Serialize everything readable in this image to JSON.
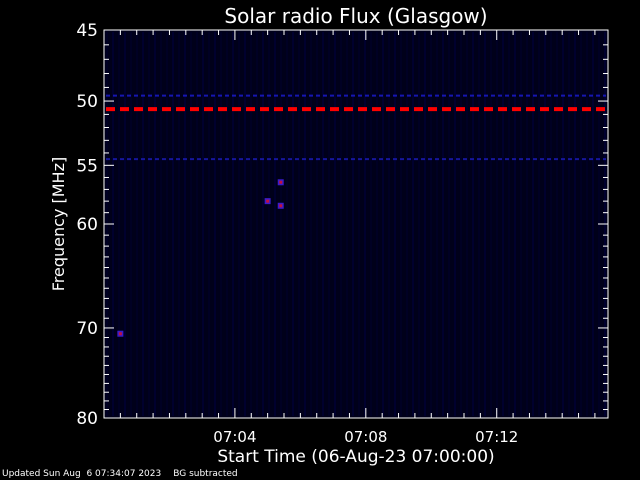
{
  "chart_data": {
    "type": "heatmap",
    "title": "Solar radio Flux (Glasgow)",
    "xlabel": "Start Time (06-Aug-23 07:00:00)",
    "ylabel": "Frequency [MHz]",
    "x_unit": "minutes after 07:00:00",
    "xlim": [
      0,
      15.4
    ],
    "ylim": [
      45,
      80
    ],
    "y_scale": "log",
    "x_ticks": [
      {
        "value": 4,
        "label": "07:04"
      },
      {
        "value": 8,
        "label": "07:08"
      },
      {
        "value": 12,
        "label": "07:12"
      }
    ],
    "y_ticks": [
      {
        "value": 45,
        "label": "45"
      },
      {
        "value": 50,
        "label": "50"
      },
      {
        "value": 55,
        "label": "55"
      },
      {
        "value": 60,
        "label": "60"
      },
      {
        "value": 70,
        "label": "70"
      },
      {
        "value": 80,
        "label": "80"
      }
    ],
    "background_color": "#00001a",
    "interference_bands": [
      {
        "freq": 49.6,
        "color": "#1a1acc"
      },
      {
        "freq": 50.6,
        "color": "#ff0000",
        "style": "dashed"
      },
      {
        "freq": 54.5,
        "color": "#1a1ab3"
      }
    ],
    "hot_spots": [
      {
        "time": 5.4,
        "freq": 56.4
      },
      {
        "time": 5.0,
        "freq": 58.0
      },
      {
        "time": 5.4,
        "freq": 58.4
      },
      {
        "time": 0.5,
        "freq": 70.6
      }
    ],
    "grid": false,
    "legend": "none"
  },
  "footer": {
    "updated": "Updated Sun Aug  6 07:34:07 2023",
    "note": "BG subtracted"
  }
}
